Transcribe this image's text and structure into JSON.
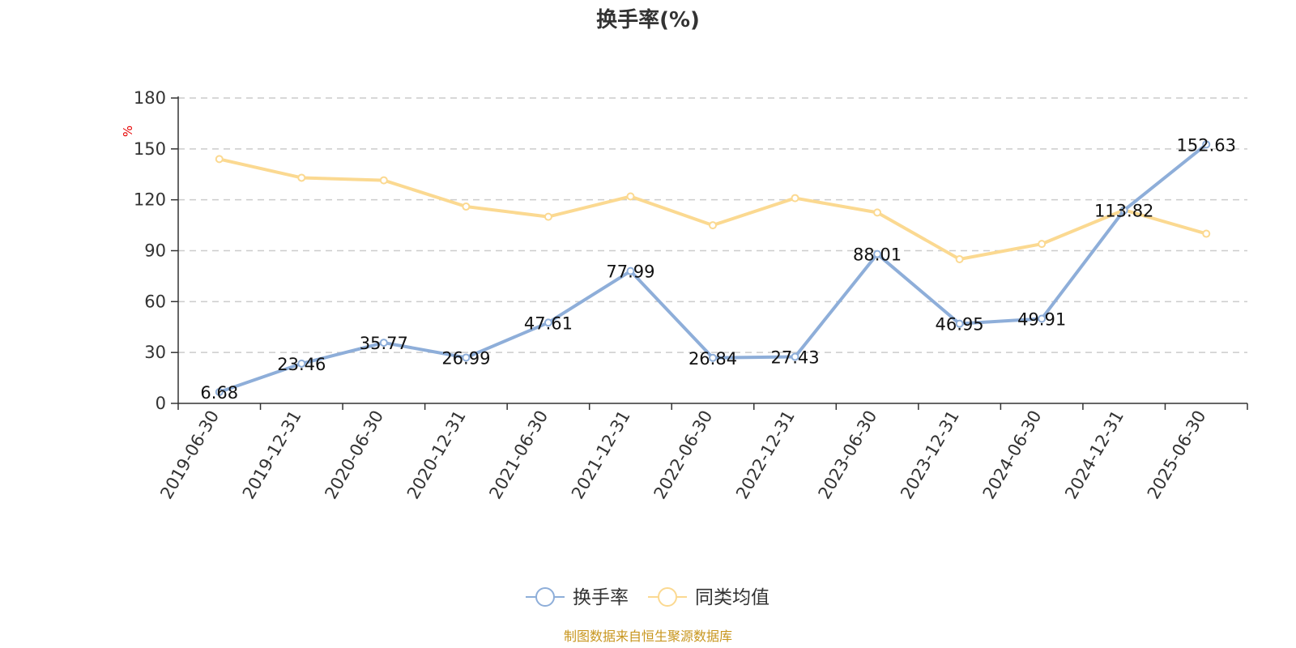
{
  "chart_data": {
    "type": "line",
    "title": "换手率(%)",
    "ylabel": "%",
    "ylim": [
      0,
      180
    ],
    "yticks": [
      0,
      30,
      60,
      90,
      120,
      150,
      180
    ],
    "grid": true,
    "legend_position": "bottom-center",
    "categories": [
      "2019-06-30",
      "2019-12-31",
      "2020-06-30",
      "2020-12-31",
      "2021-06-30",
      "2021-12-31",
      "2022-06-30",
      "2022-12-31",
      "2023-06-30",
      "2023-12-31",
      "2024-06-30",
      "2024-12-31",
      "2025-06-30"
    ],
    "series": [
      {
        "name": "换手率",
        "color": "#8eaed9",
        "values": [
          6.68,
          23.46,
          35.77,
          26.99,
          47.61,
          77.99,
          26.84,
          27.43,
          88.01,
          46.95,
          49.91,
          113.82,
          152.63
        ],
        "labels": [
          "6.68",
          "23.46",
          "35.77",
          "26.99",
          "47.61",
          "77.99",
          "26.84",
          "27.43",
          "88.01",
          "46.95",
          "49.91",
          "113.82",
          "152.63"
        ]
      },
      {
        "name": "同类均值",
        "color": "#fbd991",
        "values": [
          144,
          133,
          131.5,
          116,
          110,
          122,
          105,
          121,
          112.5,
          85,
          94,
          114,
          100
        ]
      }
    ],
    "source": "制图数据来自恒生聚源数据库"
  }
}
